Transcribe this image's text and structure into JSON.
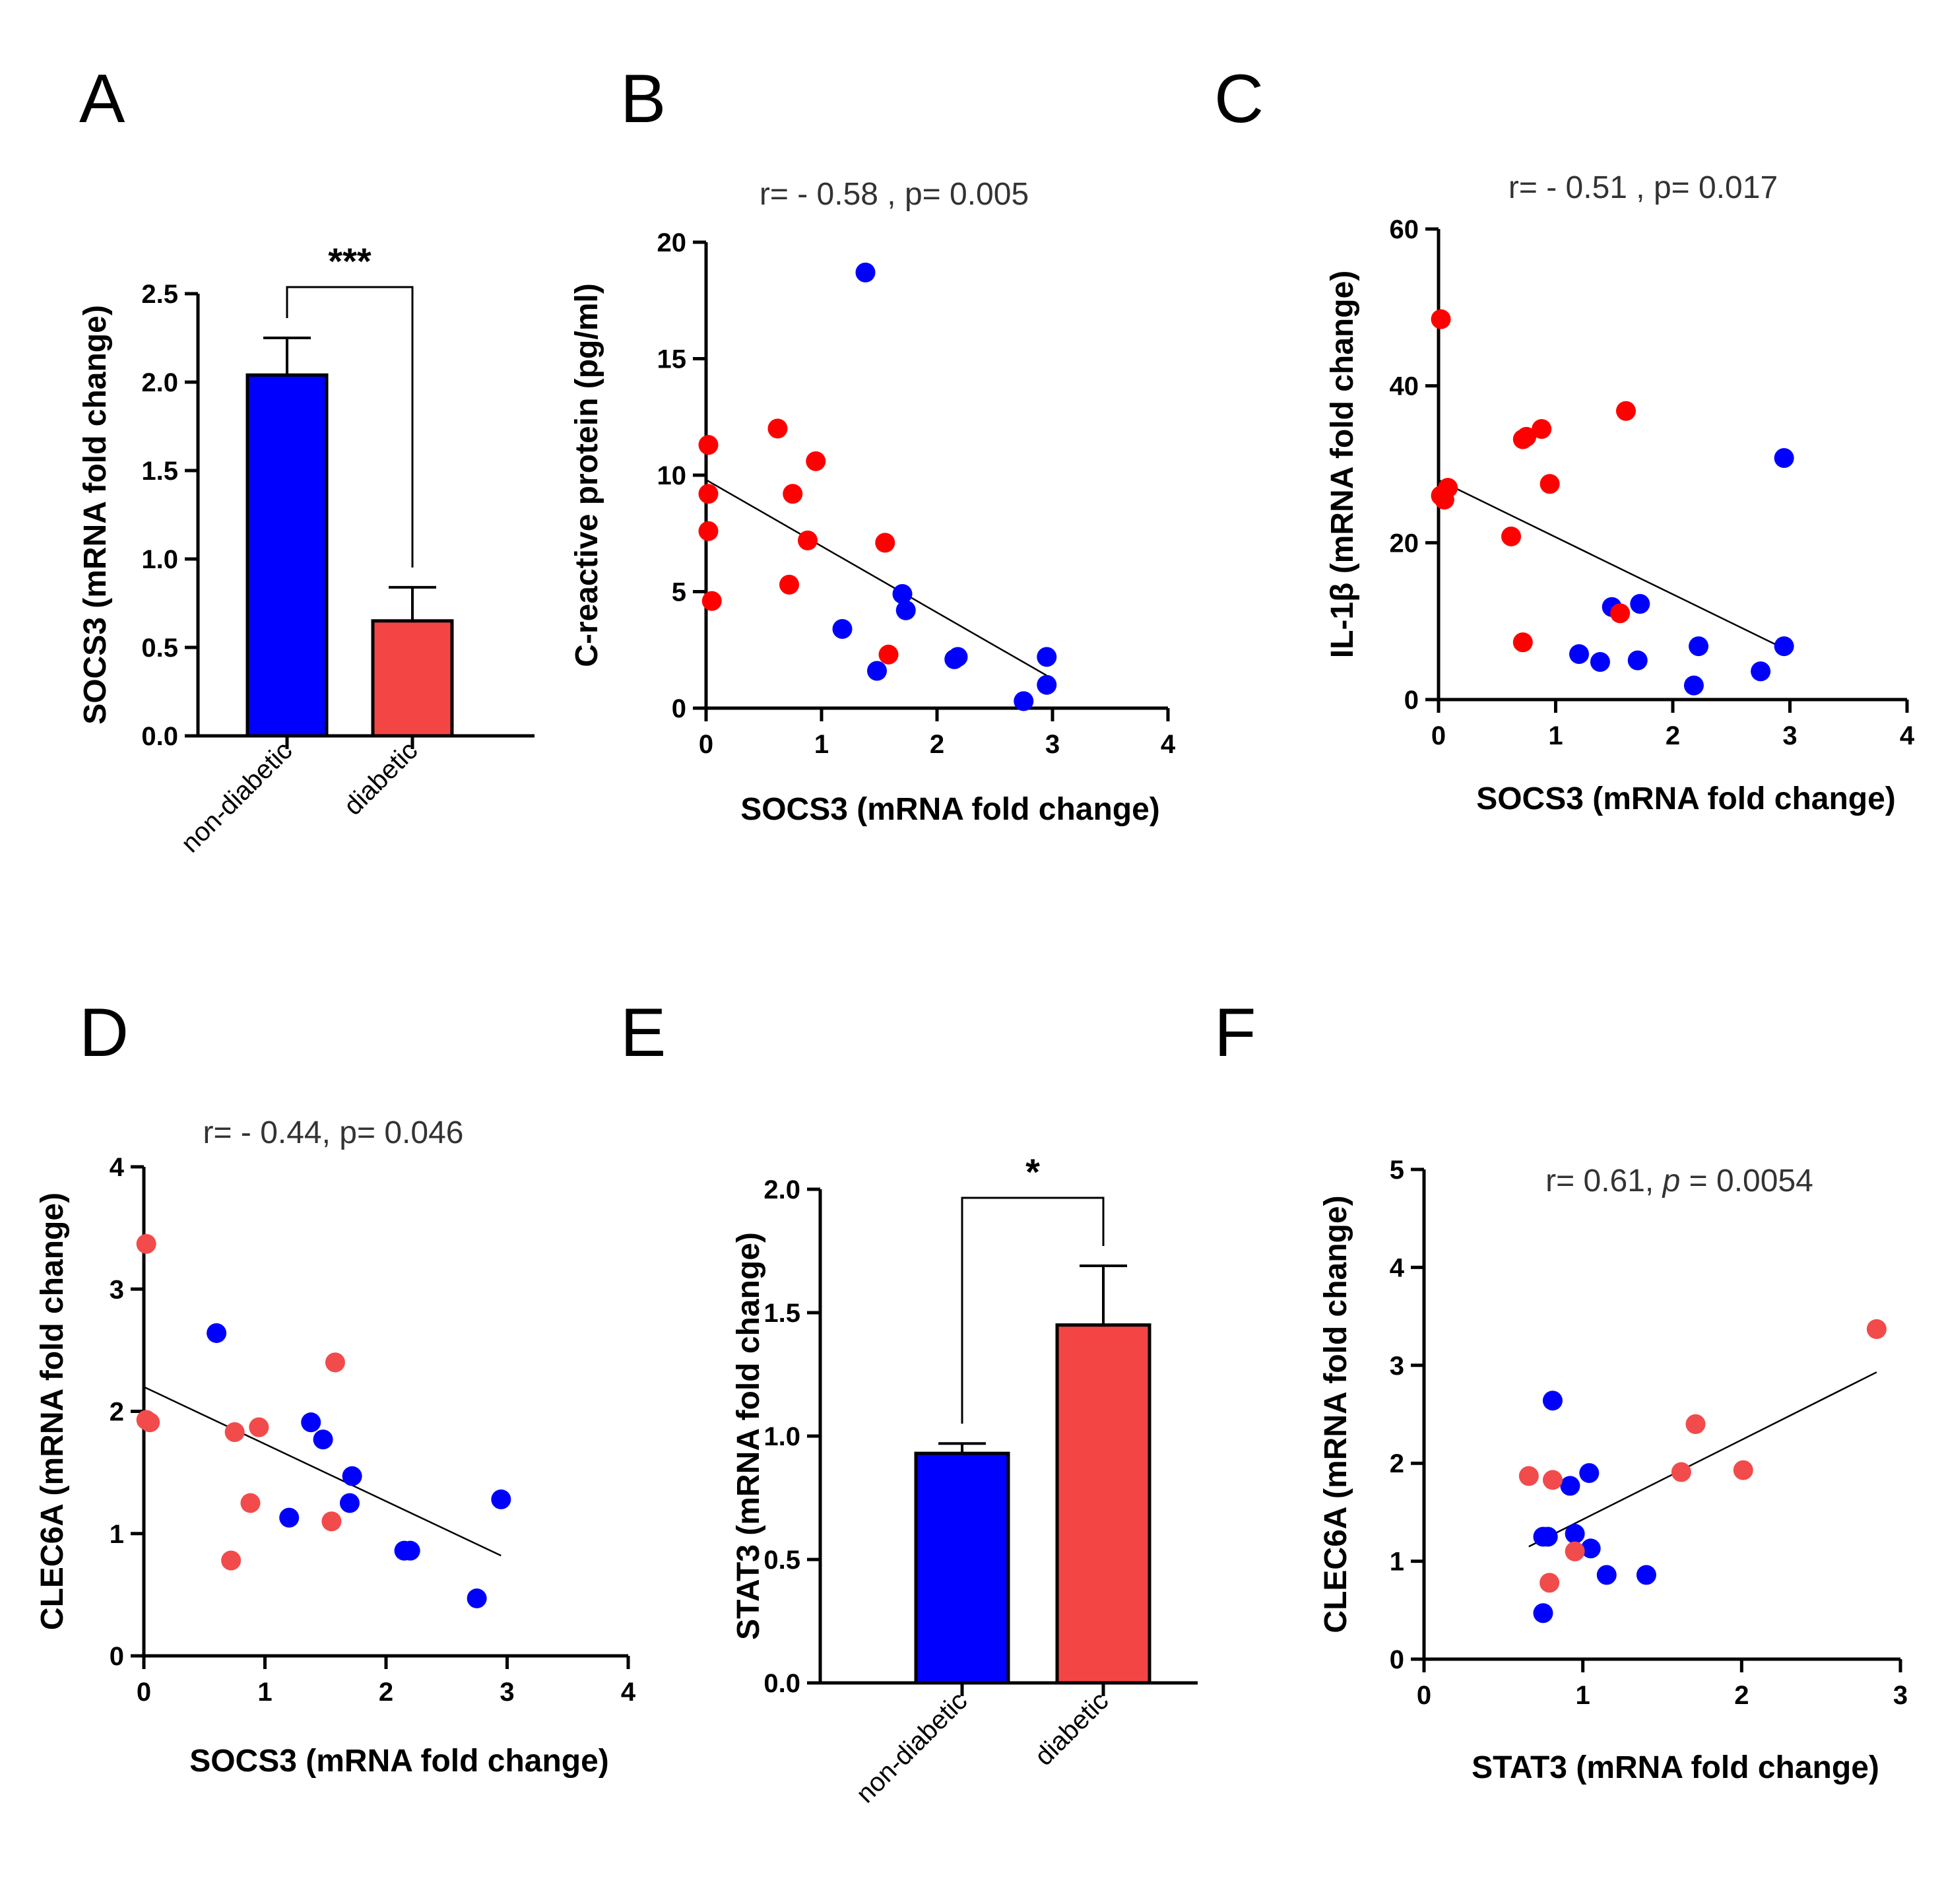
{
  "colors": {
    "blue": "#0000FF",
    "red_scatter": "#FF0000",
    "red_light": "#F24B4B",
    "bar_blue": "#0000FF",
    "bar_red": "#F44545",
    "axis": "#000000",
    "text_gray": "#333333"
  },
  "chart_data": [
    {
      "id": "A",
      "letter": "A",
      "type": "bar",
      "categories": [
        "non-diabetic",
        "diabetic"
      ],
      "values": [
        2.04,
        0.65
      ],
      "errors": [
        0.21,
        0.19
      ],
      "ylabel": "SOCS3 (mRNA fold change)",
      "ylim": [
        0,
        2.5
      ],
      "yticks": [
        "0.0",
        "0.5",
        "1.0",
        "1.5",
        "2.0",
        "2.5"
      ],
      "significance": "***"
    },
    {
      "id": "B",
      "letter": "B",
      "type": "scatter",
      "stat": "r= - 0.58 , p= 0.005",
      "xlabel": "SOCS3 (mRNA fold change)",
      "ylabel": "C-reactive protein (pg/ml)",
      "xlim": [
        0,
        4
      ],
      "ylim": [
        0,
        20
      ],
      "xticks": [
        "0",
        "1",
        "2",
        "3",
        "4"
      ],
      "yticks": [
        "0",
        "5",
        "10",
        "15",
        "20"
      ],
      "fit": {
        "x": [
          0,
          2.95
        ],
        "y": [
          9.8,
          1.4
        ]
      },
      "series": [
        {
          "name": "non-diabetic",
          "color": "blue",
          "x": [
            1.38,
            1.18,
            1.48,
            1.7,
            1.73,
            2.15,
            2.18,
            2.75,
            2.95,
            2.95
          ],
          "y": [
            18.7,
            3.4,
            1.6,
            4.9,
            4.2,
            2.1,
            2.2,
            0.3,
            2.2,
            1.0
          ]
        },
        {
          "name": "diabetic",
          "color": "red_scatter",
          "x": [
            0.02,
            0.02,
            0.02,
            0.05,
            0.62,
            0.75,
            0.95,
            0.88,
            0.72,
            1.55,
            1.58
          ],
          "y": [
            11.3,
            9.2,
            7.6,
            4.6,
            12.0,
            9.2,
            10.6,
            7.2,
            5.3,
            7.1,
            2.3
          ]
        }
      ]
    },
    {
      "id": "C",
      "letter": "C",
      "type": "scatter",
      "stat": "r= - 0.51 , p= 0.017",
      "xlabel": "SOCS3 (mRNA fold change)",
      "ylabel": "IL-1β  (mRNA fold change)",
      "xlim": [
        0,
        4
      ],
      "ylim": [
        0,
        60
      ],
      "xticks": [
        "0",
        "1",
        "2",
        "3",
        "4"
      ],
      "yticks": [
        "0",
        "20",
        "40",
        "60"
      ],
      "fit": {
        "x": [
          0,
          2.95
        ],
        "y": [
          28,
          6.5
        ]
      },
      "series": [
        {
          "name": "non-diabetic",
          "color": "blue",
          "x": [
            1.48,
            1.72,
            1.2,
            1.38,
            1.7,
            2.22,
            2.18,
            2.75,
            2.95,
            2.95
          ],
          "y": [
            11.8,
            12.2,
            5.8,
            4.8,
            5.0,
            6.8,
            1.8,
            3.6,
            30.8,
            6.8
          ]
        },
        {
          "name": "diabetic",
          "color": "red_scatter",
          "x": [
            0.02,
            0.02,
            0.05,
            0.08,
            0.75,
            0.72,
            0.88,
            0.95,
            0.62,
            1.6,
            1.55,
            0.72
          ],
          "y": [
            48.5,
            26.0,
            25.5,
            27.0,
            33.5,
            33.2,
            34.5,
            27.5,
            20.8,
            36.8,
            11.0,
            7.3
          ]
        }
      ]
    },
    {
      "id": "D",
      "letter": "D",
      "type": "scatter",
      "stat": "r= - 0.44, p= 0.046",
      "xlabel": "SOCS3 (mRNA fold change)",
      "ylabel": "CLEC6A (mRNA fold change)",
      "xlim": [
        0,
        4
      ],
      "ylim": [
        0,
        4
      ],
      "xticks": [
        "0",
        "1",
        "2",
        "3",
        "4"
      ],
      "yticks": [
        "0",
        "1",
        "2",
        "3",
        "4"
      ],
      "fit": {
        "x": [
          0,
          2.95
        ],
        "y": [
          2.2,
          0.82
        ]
      },
      "series": [
        {
          "name": "non-diabetic",
          "color": "blue",
          "x": [
            0.6,
            1.38,
            1.48,
            1.72,
            1.7,
            1.2,
            2.15,
            2.2,
            2.75,
            2.95
          ],
          "y": [
            2.64,
            1.91,
            1.77,
            1.47,
            1.25,
            1.13,
            0.86,
            0.86,
            0.47,
            1.28
          ]
        },
        {
          "name": "diabetic",
          "color": "red_light",
          "x": [
            0.02,
            0.02,
            0.05,
            0.75,
            0.95,
            0.88,
            0.72,
            1.58,
            1.55
          ],
          "y": [
            3.37,
            1.93,
            1.91,
            1.83,
            1.87,
            1.25,
            0.78,
            2.4,
            1.1
          ]
        }
      ]
    },
    {
      "id": "E",
      "letter": "E",
      "type": "bar",
      "categories": [
        "non-diabetic",
        "diabetic"
      ],
      "values": [
        0.93,
        1.45
      ],
      "errors": [
        0.04,
        0.24
      ],
      "ylabel": "STAT3 (mRNA fold change)",
      "ylim": [
        0,
        2.0
      ],
      "yticks": [
        "0.0",
        "0.5",
        "1.0",
        "1.5",
        "2.0"
      ],
      "significance": "*"
    },
    {
      "id": "F",
      "letter": "F",
      "type": "scatter",
      "stat_prefix": "r= 0.61, ",
      "stat_p": "p",
      "stat_suffix": " = 0.0054",
      "xlabel": "STAT3 (mRNA fold change)",
      "ylabel": "CLEC6A (mRNA fold change)",
      "xlim": [
        0,
        3
      ],
      "ylim": [
        0,
        5
      ],
      "xticks": [
        "0",
        "1",
        "2",
        "3"
      ],
      "yticks": [
        "0",
        "1",
        "2",
        "3",
        "4",
        "5"
      ],
      "fit": {
        "x": [
          0.66,
          2.85
        ],
        "y": [
          1.15,
          2.93
        ]
      },
      "series": [
        {
          "name": "non-diabetic",
          "color": "blue",
          "x": [
            0.81,
            0.92,
            1.04,
            0.75,
            0.78,
            0.95,
            1.05,
            1.15,
            1.4,
            0.75
          ],
          "y": [
            2.64,
            1.77,
            1.9,
            1.25,
            1.25,
            1.28,
            1.13,
            0.86,
            0.86,
            0.47
          ]
        },
        {
          "name": "diabetic",
          "color": "red_light",
          "x": [
            0.66,
            0.81,
            1.71,
            1.62,
            2.01,
            2.85,
            0.95,
            0.79
          ],
          "y": [
            1.87,
            1.83,
            2.4,
            1.91,
            1.93,
            3.37,
            1.1,
            0.78
          ]
        }
      ]
    }
  ]
}
